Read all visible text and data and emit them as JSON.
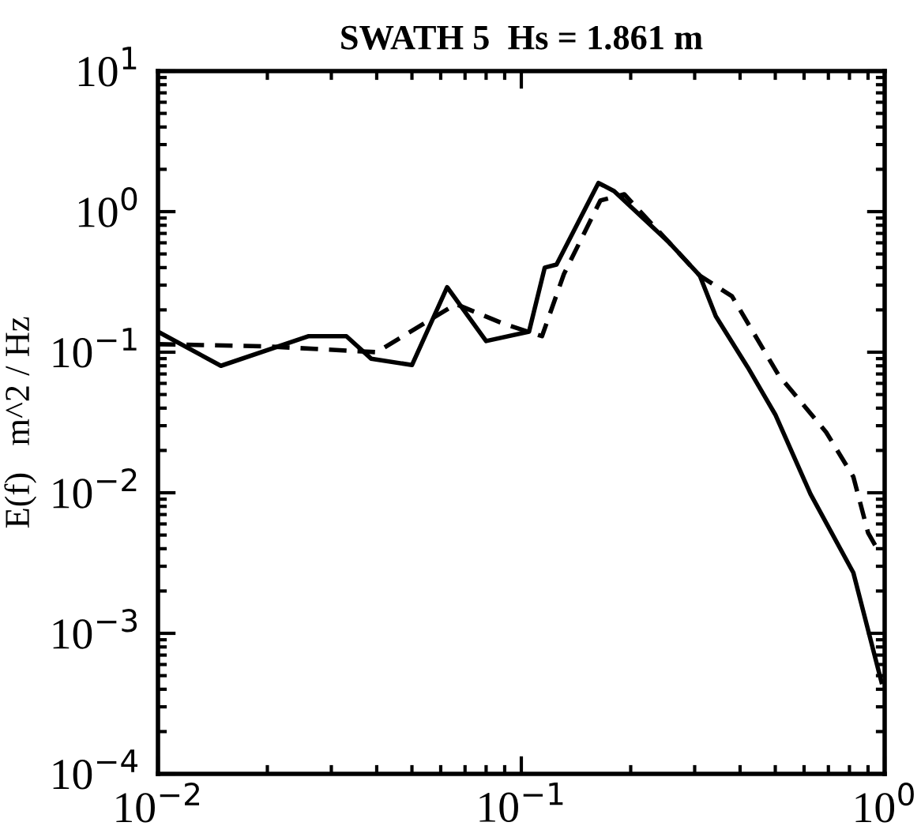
{
  "chart_data": {
    "type": "line",
    "title": "SWATH 5  Hs = 1.861 m",
    "ylabel": "E(f)   m^2 / Hz",
    "log": "xy",
    "grid": false,
    "legend": false,
    "marker": "none",
    "xlim": [
      0.01,
      1
    ],
    "xticks": [
      {
        "value": 0.01,
        "label": "10$^{−2}$"
      },
      {
        "value": 0.1,
        "label": "10$^{−1}$"
      },
      {
        "value": 1,
        "label": "10$^{0}$"
      }
    ],
    "ylim": [
      0.0001,
      10
    ],
    "yticks": [
      {
        "value": 0.0001,
        "label": "10$^{−4}$"
      },
      {
        "value": 0.001,
        "label": "10$^{−3}$"
      },
      {
        "value": 0.01,
        "label": "10$^{−2}$"
      },
      {
        "value": 0.1,
        "label": "10$^{−1}$"
      },
      {
        "value": 1,
        "label": "10$^{0}$"
      },
      {
        "value": 10,
        "label": "10$^{1}$"
      }
    ],
    "series": [
      {
        "color": "#000000",
        "line_style": "solid",
        "x": [
          0.01,
          0.0149,
          0.026,
          0.033,
          0.0386,
          0.05,
          0.0625,
          0.08,
          0.105,
          0.116,
          0.125,
          0.163,
          0.18,
          0.254,
          0.31,
          0.343,
          0.42,
          0.5,
          0.625,
          0.82,
          0.98
        ],
        "values": [
          0.14,
          0.08,
          0.13,
          0.13,
          0.09,
          0.081,
          0.29,
          0.12,
          0.14,
          0.4,
          0.42,
          1.6,
          1.4,
          0.61,
          0.35,
          0.18,
          0.078,
          0.036,
          0.0098,
          0.0027,
          0.00045
        ]
      },
      {
        "color": "#000000",
        "line_style": "dashed",
        "x": [
          0.01,
          0.02,
          0.04,
          0.066,
          0.089,
          0.114,
          0.131,
          0.165,
          0.192,
          0.254,
          0.31,
          0.38,
          0.51,
          0.69,
          0.82,
          0.9,
          0.97
        ],
        "values": [
          0.114,
          0.11,
          0.1,
          0.22,
          0.16,
          0.13,
          0.36,
          1.2,
          1.33,
          0.61,
          0.35,
          0.25,
          0.069,
          0.027,
          0.013,
          0.0052,
          0.0037
        ]
      }
    ]
  }
}
